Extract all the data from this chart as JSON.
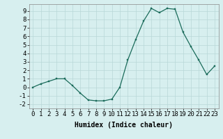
{
  "x": [
    0,
    1,
    2,
    3,
    4,
    5,
    6,
    7,
    8,
    9,
    10,
    11,
    12,
    13,
    14,
    15,
    16,
    17,
    18,
    19,
    20,
    21,
    22,
    23
  ],
  "y": [
    0,
    0.4,
    0.7,
    1.0,
    1.0,
    0.2,
    -0.7,
    -1.5,
    -1.6,
    -1.6,
    -1.4,
    0.0,
    3.2,
    5.6,
    7.8,
    9.3,
    8.8,
    9.3,
    9.2,
    6.5,
    4.8,
    3.2,
    1.5,
    2.5
  ],
  "line_color": "#1a6b5a",
  "marker_color": "#1a6b5a",
  "bg_color": "#d7efef",
  "grid_color": "#b8d8d8",
  "xlabel": "Humidex (Indice chaleur)",
  "xlim": [
    -0.5,
    23.5
  ],
  "ylim": [
    -2.5,
    9.8
  ],
  "yticks": [
    -2,
    -1,
    0,
    1,
    2,
    3,
    4,
    5,
    6,
    7,
    8,
    9
  ],
  "xticks": [
    0,
    1,
    2,
    3,
    4,
    5,
    6,
    7,
    8,
    9,
    10,
    11,
    12,
    13,
    14,
    15,
    16,
    17,
    18,
    19,
    20,
    21,
    22,
    23
  ],
  "tick_fontsize": 6.5,
  "xlabel_fontsize": 7.0
}
